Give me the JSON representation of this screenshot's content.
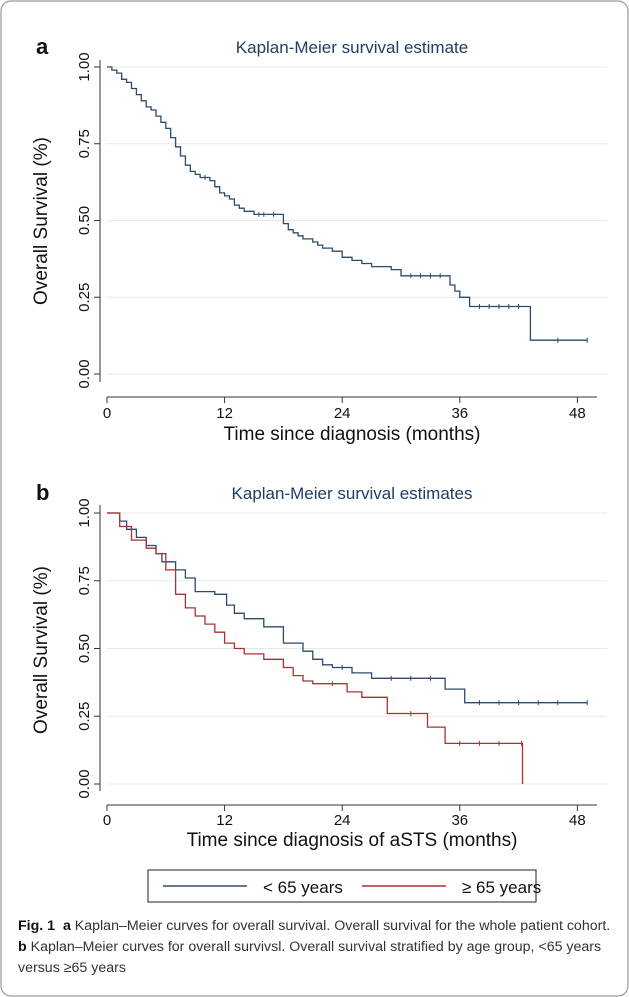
{
  "chart_data": [
    {
      "type": "line",
      "panel": "a",
      "title": "Kaplan-Meier survival estimate",
      "xlabel": "Time since diagnosis (months)",
      "ylabel": "Overall Survival (%)",
      "xticks": [
        "0",
        "12",
        "24",
        "36",
        "48"
      ],
      "yticks": [
        "0.00",
        "0.25",
        "0.50",
        "0.75",
        "1.00"
      ],
      "xlim": [
        0,
        50
      ],
      "ylim": [
        0,
        1
      ],
      "grid": true,
      "series": [
        {
          "color": "#2e4a6b",
          "x": [
            0,
            0.5,
            1,
            1.5,
            2,
            2.5,
            3,
            3.5,
            4,
            4.5,
            5,
            5.5,
            6,
            6.5,
            7,
            7.5,
            8,
            8.5,
            9,
            9.5,
            10,
            10.5,
            11,
            11.5,
            12,
            12.5,
            13,
            13.5,
            14,
            15,
            15.5,
            16,
            17,
            18,
            18.5,
            19,
            19.5,
            20,
            21,
            21.5,
            22,
            23,
            24,
            25,
            26,
            27,
            29,
            30,
            31,
            32,
            33,
            34,
            35,
            35.5,
            36,
            37,
            38,
            39,
            40,
            41,
            42,
            43.2,
            46,
            49
          ],
          "y": [
            1.0,
            0.99,
            0.98,
            0.96,
            0.95,
            0.93,
            0.91,
            0.89,
            0.87,
            0.86,
            0.84,
            0.82,
            0.8,
            0.77,
            0.74,
            0.71,
            0.68,
            0.66,
            0.65,
            0.64,
            0.64,
            0.63,
            0.61,
            0.59,
            0.58,
            0.57,
            0.55,
            0.54,
            0.53,
            0.52,
            0.52,
            0.52,
            0.52,
            0.49,
            0.47,
            0.46,
            0.45,
            0.44,
            0.43,
            0.42,
            0.41,
            0.4,
            0.38,
            0.37,
            0.36,
            0.35,
            0.34,
            0.32,
            0.32,
            0.32,
            0.32,
            0.32,
            0.29,
            0.27,
            0.25,
            0.22,
            0.22,
            0.22,
            0.22,
            0.22,
            0.22,
            0.11,
            0.11,
            0.11
          ]
        }
      ]
    },
    {
      "type": "line",
      "panel": "b",
      "title": "Kaplan-Meier survival estimates",
      "xlabel": "Time since diagnosis of aSTS (months)",
      "ylabel": "Overall Survival (%)",
      "xticks": [
        "0",
        "12",
        "24",
        "36",
        "48"
      ],
      "yticks": [
        "0.00",
        "0.25",
        "0.50",
        "0.75",
        "1.00"
      ],
      "xlim": [
        0,
        50
      ],
      "ylim": [
        0,
        1
      ],
      "grid": true,
      "legend": "bottom",
      "series": [
        {
          "name": "< 65 years",
          "color": "#2e4a6b",
          "x": [
            0,
            1.3,
            2,
            3,
            4,
            5,
            5.6,
            7,
            8,
            9,
            11,
            12.2,
            13,
            14,
            16,
            18,
            20,
            21,
            22,
            23,
            24,
            25,
            27,
            29,
            31,
            33,
            34.5,
            36.5,
            38,
            40,
            42,
            44,
            46,
            49
          ],
          "y": [
            1.0,
            0.97,
            0.94,
            0.91,
            0.88,
            0.85,
            0.82,
            0.79,
            0.76,
            0.71,
            0.7,
            0.66,
            0.63,
            0.61,
            0.58,
            0.52,
            0.49,
            0.46,
            0.44,
            0.43,
            0.43,
            0.41,
            0.39,
            0.39,
            0.39,
            0.39,
            0.35,
            0.3,
            0.3,
            0.3,
            0.3,
            0.3,
            0.3,
            0.3
          ]
        },
        {
          "name": "≥ 65 years",
          "color": "#a83232",
          "x": [
            0,
            1.3,
            2.5,
            4,
            5,
            6,
            7,
            8,
            9,
            10,
            11,
            12,
            13,
            14,
            16,
            18,
            19,
            20,
            21,
            23,
            24.5,
            26,
            28.6,
            31,
            32.7,
            34.5,
            36,
            38,
            40,
            42.3,
            42.4
          ],
          "y": [
            1.0,
            0.95,
            0.9,
            0.87,
            0.85,
            0.79,
            0.7,
            0.65,
            0.62,
            0.59,
            0.56,
            0.52,
            0.5,
            0.48,
            0.46,
            0.43,
            0.4,
            0.38,
            0.37,
            0.37,
            0.34,
            0.32,
            0.26,
            0.26,
            0.21,
            0.15,
            0.15,
            0.15,
            0.15,
            0.15,
            0.0
          ]
        }
      ]
    }
  ],
  "caption": {
    "fig_label": "Fig. 1",
    "a_label": "a",
    "a_text": " Kaplan–Meier curves for overall survival. Overall survival for the whole patient cohort. ",
    "b_label": "b",
    "b_text": " Kaplan–Meier curves for overall survivsl. Overall survival stratified by age group, <65 years versus ≥65 years"
  }
}
